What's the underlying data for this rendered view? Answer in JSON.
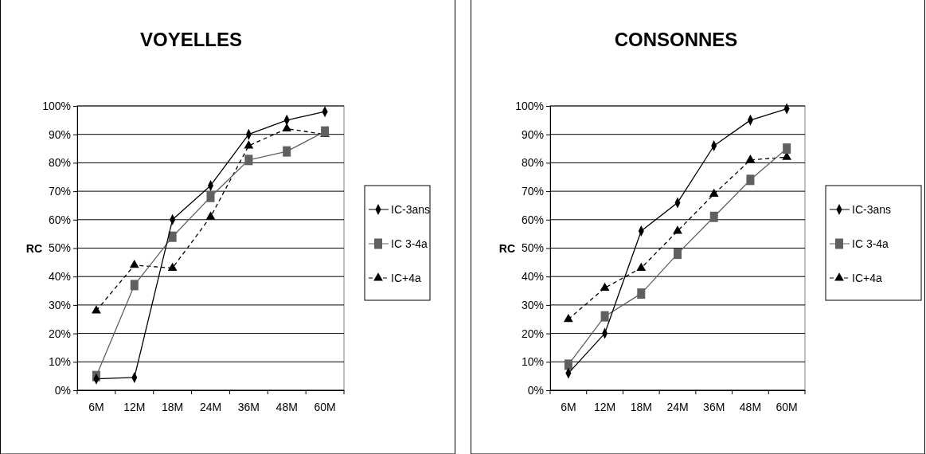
{
  "chart_data": [
    {
      "type": "line",
      "title": "VOYELLES",
      "ylabel": "RC",
      "categories": [
        "6M",
        "12M",
        "18M",
        "24M",
        "36M",
        "48M",
        "60M"
      ],
      "series": [
        {
          "name": "IC-3ans",
          "color": "#000000",
          "marker": "diamond",
          "line_style": "solid",
          "values": [
            4,
            4.5,
            60,
            72,
            90,
            95,
            98
          ]
        },
        {
          "name": "IC 3-4a",
          "color": "#606060",
          "marker": "square",
          "line_style": "solid",
          "values": [
            5,
            37,
            54,
            68,
            81,
            84,
            91
          ]
        },
        {
          "name": "IC+4a",
          "color": "#000000",
          "marker": "triangle",
          "line_style": "dashed",
          "values": [
            28,
            44,
            43,
            61,
            86,
            92,
            90
          ]
        }
      ],
      "ylim": [
        0,
        100
      ],
      "yticks": [
        {
          "value": 0,
          "label": "0%"
        },
        {
          "value": 10,
          "label": "10%"
        },
        {
          "value": 20,
          "label": "20%"
        },
        {
          "value": 30,
          "label": "30%"
        },
        {
          "value": 40,
          "label": "40%"
        },
        {
          "value": 50,
          "label": "50%"
        },
        {
          "value": 60,
          "label": "60%"
        },
        {
          "value": 70,
          "label": "70%"
        },
        {
          "value": 80,
          "label": "80%"
        },
        {
          "value": 90,
          "label": "90%"
        },
        {
          "value": 100,
          "label": "100%"
        }
      ],
      "grid": "y",
      "legend": "right"
    },
    {
      "type": "line",
      "title": "CONSONNES",
      "ylabel": "RC",
      "categories": [
        "6M",
        "12M",
        "18M",
        "24M",
        "36M",
        "48M",
        "60M"
      ],
      "series": [
        {
          "name": "IC-3ans",
          "color": "#000000",
          "marker": "diamond",
          "line_style": "solid",
          "values": [
            6,
            20,
            56,
            66,
            86,
            95,
            99
          ]
        },
        {
          "name": "IC 3-4a",
          "color": "#606060",
          "marker": "square",
          "line_style": "solid",
          "values": [
            9,
            26,
            34,
            48,
            61,
            74,
            85
          ]
        },
        {
          "name": "IC+4a",
          "color": "#000000",
          "marker": "triangle",
          "line_style": "dashed",
          "values": [
            25,
            36,
            43,
            56,
            69,
            81,
            82
          ]
        }
      ],
      "ylim": [
        0,
        100
      ],
      "yticks": [
        {
          "value": 0,
          "label": "0%"
        },
        {
          "value": 10,
          "label": "10%"
        },
        {
          "value": 20,
          "label": "20%"
        },
        {
          "value": 30,
          "label": "30%"
        },
        {
          "value": 40,
          "label": "40%"
        },
        {
          "value": 50,
          "label": "50%"
        },
        {
          "value": 60,
          "label": "60%"
        },
        {
          "value": 70,
          "label": "70%"
        },
        {
          "value": 80,
          "label": "80%"
        },
        {
          "value": 90,
          "label": "90%"
        },
        {
          "value": 100,
          "label": "100%"
        }
      ],
      "grid": "y",
      "legend": "right"
    }
  ]
}
